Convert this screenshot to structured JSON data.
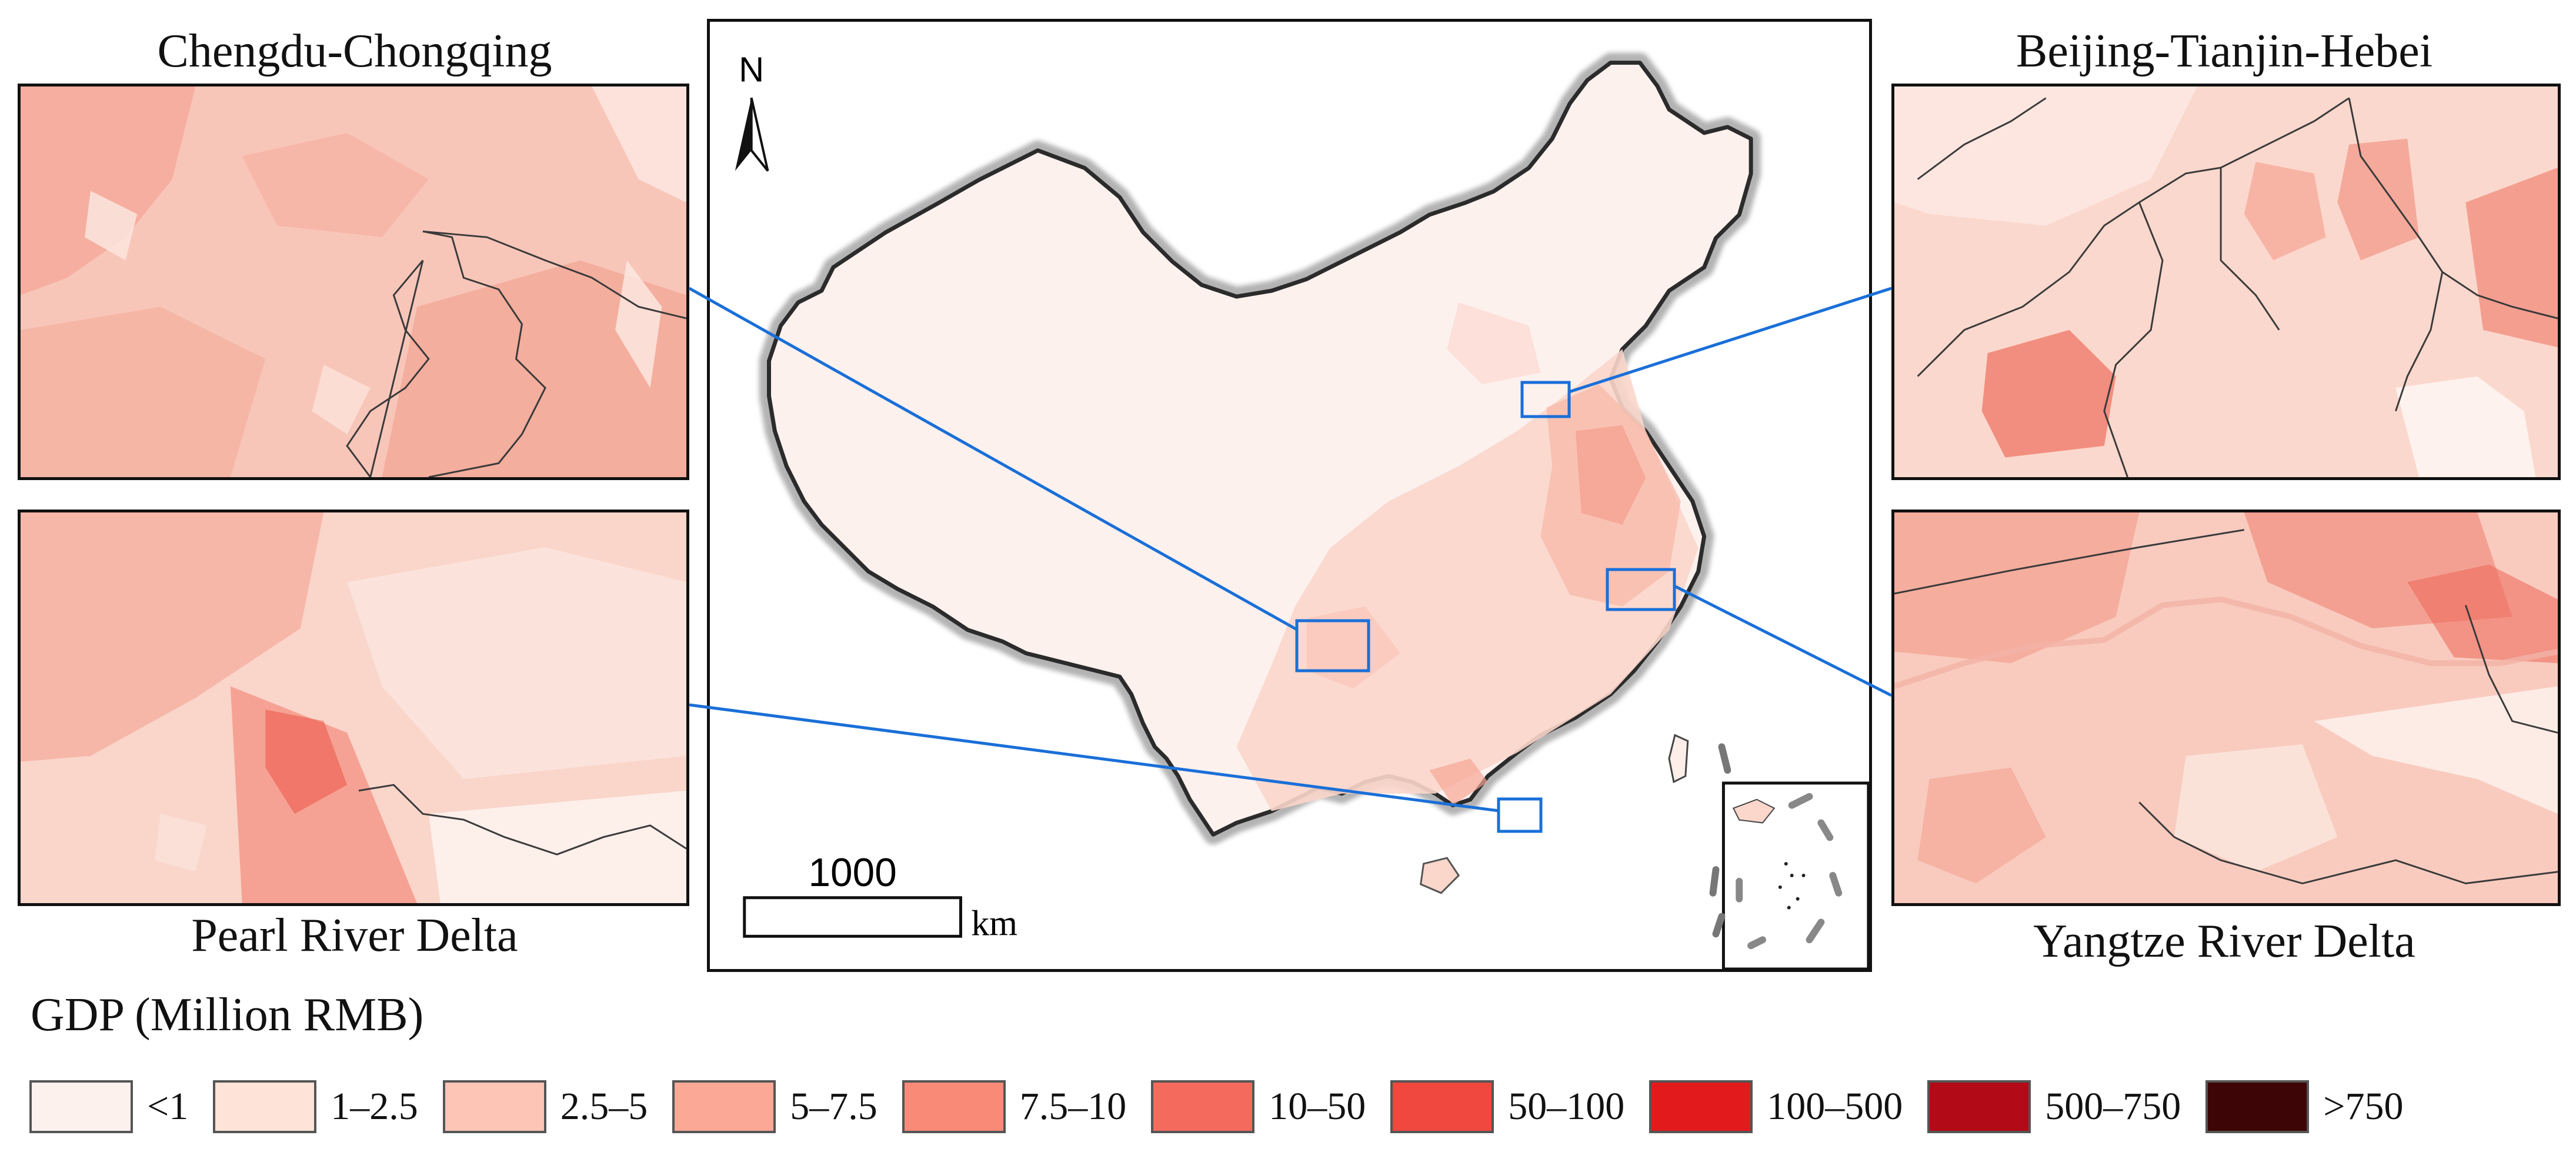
{
  "panels": {
    "chengdu": {
      "title": "Chengdu-Chongqing"
    },
    "pearl": {
      "title": "Pearl River Delta"
    },
    "beijing": {
      "title": "Beijing-Tianjin-Hebei"
    },
    "yangtze": {
      "title": "Yangtze River Delta"
    }
  },
  "main_map": {
    "north_label": "N",
    "scale_value": "1000",
    "scale_unit": "km"
  },
  "legend": {
    "title": "GDP (Million RMB)",
    "items": [
      {
        "label": "<1",
        "color": "#fdf1ee"
      },
      {
        "label": "1–2.5",
        "color": "#fde3d8"
      },
      {
        "label": "2.5–5",
        "color": "#fcc5b6"
      },
      {
        "label": "5–7.5",
        "color": "#fba896"
      },
      {
        "label": "7.5–10",
        "color": "#f98a78"
      },
      {
        "label": "10–50",
        "color": "#f46b5d"
      },
      {
        "label": "50–100",
        "color": "#f0483e"
      },
      {
        "label": "100–500",
        "color": "#e31a1c"
      },
      {
        "label": "500–750",
        "color": "#b20a16"
      },
      {
        "label": ">750",
        "color": "#3d0506"
      }
    ]
  },
  "colors": {
    "highlight_box": "#1a6fd8",
    "boundary": "#2b2b2b",
    "halo": "#9a9a9a"
  }
}
